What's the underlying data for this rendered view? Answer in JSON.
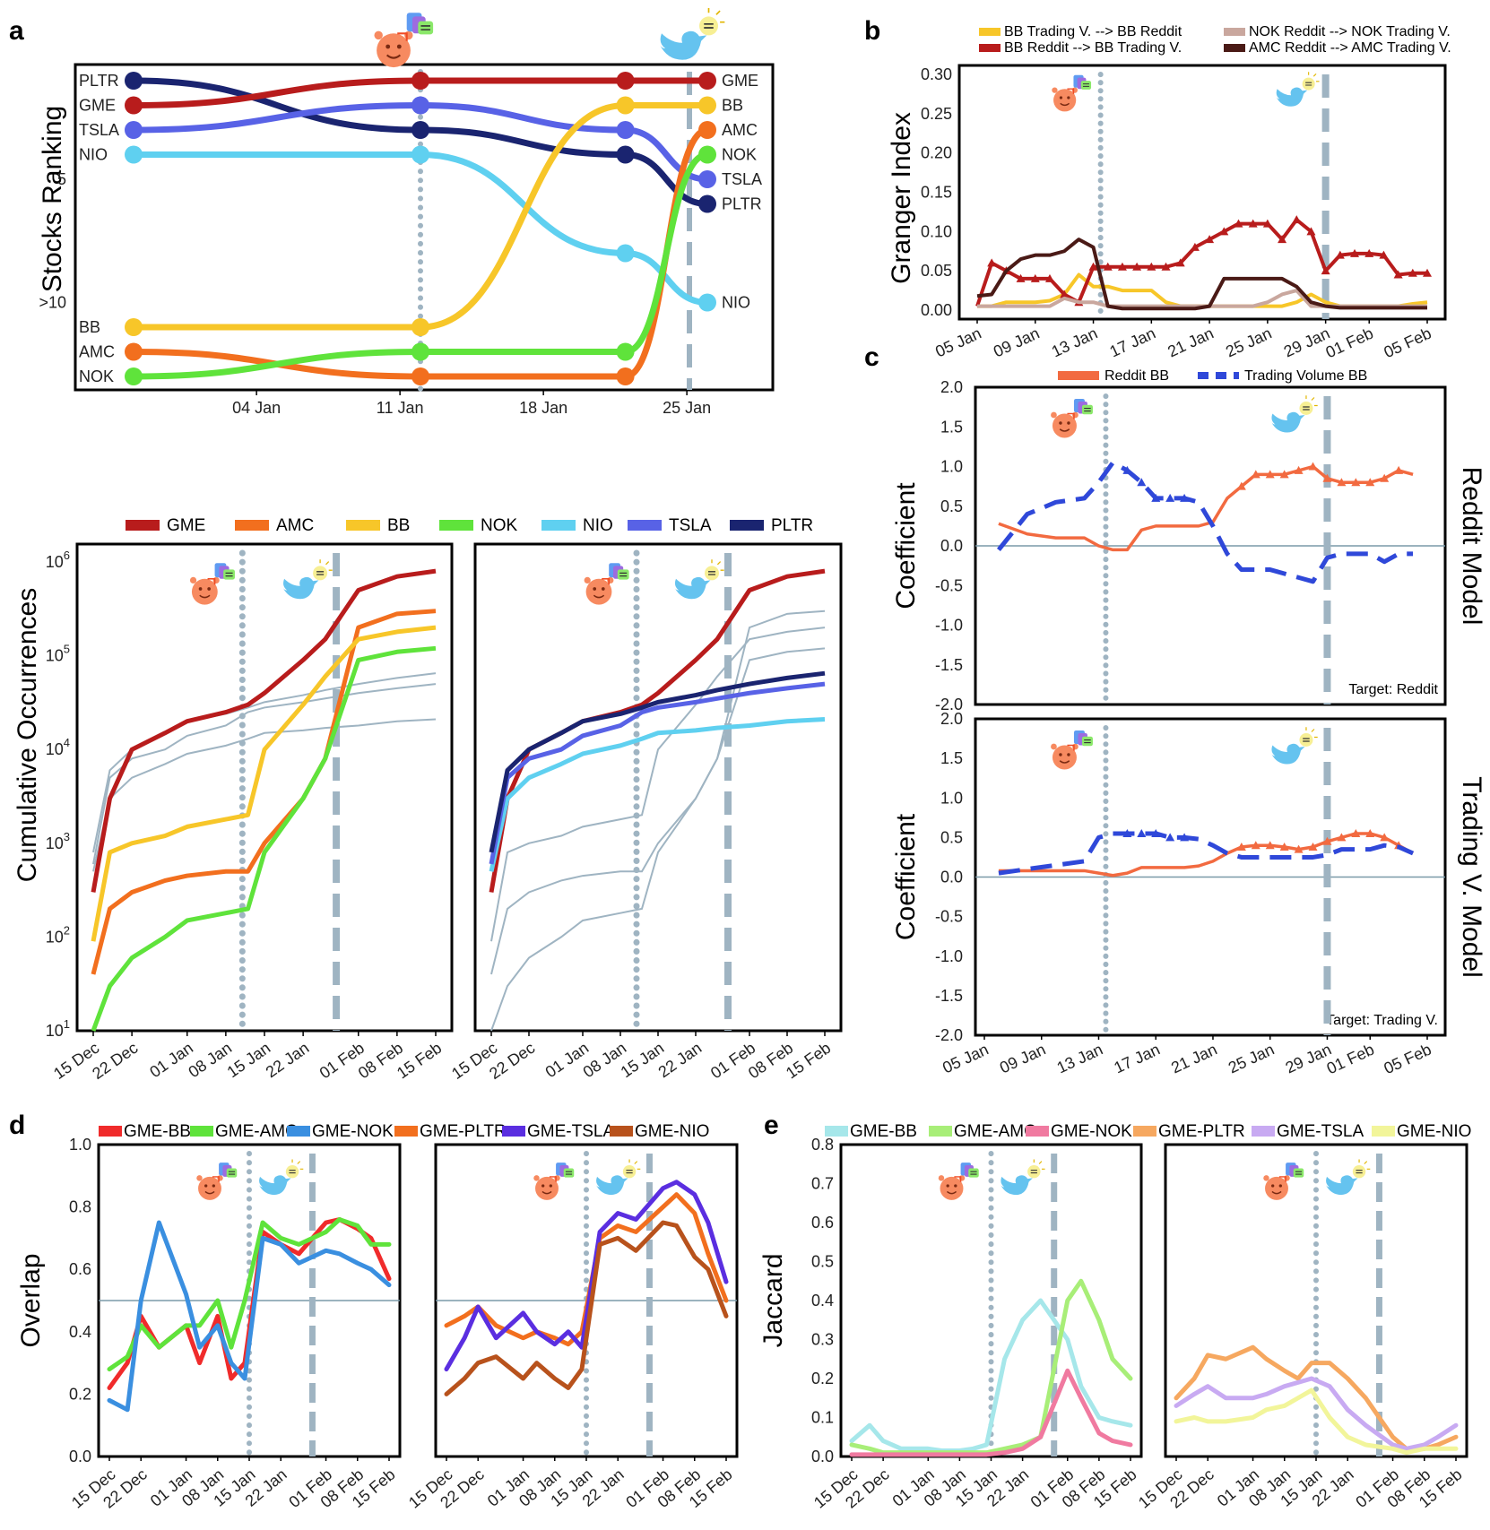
{
  "colors": {
    "GME": "#b81c1c",
    "AMC": "#f26f1e",
    "BB": "#f7c629",
    "NOK": "#5fe33b",
    "NIO": "#5fd0f0",
    "TSLA": "#5862e6",
    "PLTR": "#1a2470",
    "grey": "#9fb4c2",
    "reddit": "#f26a40",
    "trading": "#2f48d9",
    "gNOK": "#c9a79e",
    "gAMC": "#4a1a16"
  },
  "icons": {
    "reddit": "reddit-icon",
    "twitter": "twitter-icon"
  },
  "panelA": {
    "label": "a",
    "ylabel": "Stocks Ranking",
    "xticks": [
      "04 Jan",
      "11 Jan",
      "18 Jan",
      "25 Jan"
    ],
    "yticks": [
      "5",
      "&gt;10"
    ],
    "chart_data": {
      "type": "line",
      "title": "",
      "xlabel": "",
      "ylabel": "Stocks Ranking",
      "x": [
        "29 Dec",
        "12 Jan",
        "22 Jan",
        "26 Jan"
      ],
      "series": [
        {
          "name": "PLTR",
          "ranks": [
            1,
            3,
            4,
            6
          ]
        },
        {
          "name": "GME",
          "ranks": [
            2,
            1,
            1,
            1
          ]
        },
        {
          "name": "TSLA",
          "ranks": [
            3,
            2,
            3,
            5
          ]
        },
        {
          "name": "NIO",
          "ranks": [
            4,
            4,
            8,
            10
          ]
        },
        {
          "name": "BB",
          "ranks": [
            11,
            11,
            2,
            2
          ]
        },
        {
          "name": "AMC",
          "ranks": [
            12,
            13,
            13,
            3
          ]
        },
        {
          "name": "NOK",
          "ranks": [
            13,
            12,
            12,
            4
          ]
        }
      ]
    }
  },
  "panelCum": {
    "ylabel": "Cumulative Occurrences",
    "yticks": [
      "10^1",
      "10^2",
      "10^3",
      "10^4",
      "10^5",
      "10^6"
    ],
    "xticks": [
      "15 Dec",
      "22 Dec",
      "01 Jan",
      "08 Jan",
      "15 Jan",
      "22 Jan",
      "01 Feb",
      "08 Feb",
      "15 Feb"
    ],
    "legend": [
      "GME",
      "AMC",
      "BB",
      "NOK",
      "NIO",
      "TSLA",
      "PLTR"
    ],
    "chart_data": {
      "type": "line",
      "title": "",
      "xlabel": "",
      "ylabel": "Cumulative Occurrences",
      "yscale": "log",
      "ylim": [
        10,
        1000000
      ],
      "x": [
        "15 Dec",
        "18 Dec",
        "22 Dec",
        "28 Dec",
        "01 Jan",
        "08 Jan",
        "12 Jan",
        "15 Jan",
        "22 Jan",
        "26 Jan",
        "01 Feb",
        "08 Feb",
        "15 Feb"
      ],
      "series": [
        {
          "name": "GME",
          "values": [
            300,
            3000,
            10000,
            15000,
            20000,
            25000,
            30000,
            40000,
            90000,
            150000,
            500000,
            700000,
            800000
          ]
        },
        {
          "name": "AMC",
          "values": [
            40,
            200,
            300,
            400,
            450,
            500,
            500,
            1000,
            3000,
            8000,
            200000,
            280000,
            300000
          ]
        },
        {
          "name": "BB",
          "values": [
            90,
            800,
            1000,
            1200,
            1500,
            1800,
            2000,
            10000,
            30000,
            60000,
            150000,
            180000,
            200000
          ]
        },
        {
          "name": "NOK",
          "values": [
            10,
            30,
            60,
            100,
            150,
            180,
            200,
            800,
            3000,
            8000,
            90000,
            110000,
            120000
          ]
        },
        {
          "name": "NIO",
          "values": [
            500,
            3000,
            5000,
            7000,
            9000,
            11000,
            13000,
            15000,
            16000,
            17000,
            18000,
            20000,
            21000
          ]
        },
        {
          "name": "TSLA",
          "values": [
            600,
            5000,
            8000,
            10000,
            14000,
            18000,
            25000,
            28000,
            32000,
            35000,
            40000,
            45000,
            50000
          ]
        },
        {
          "name": "PLTR",
          "values": [
            800,
            6000,
            10000,
            15000,
            20000,
            24000,
            28000,
            32000,
            38000,
            43000,
            50000,
            58000,
            65000
          ]
        }
      ]
    }
  },
  "panelB": {
    "label": "b",
    "ylabel": "Granger Index",
    "yticks": [
      "0.00",
      "0.05",
      "0.10",
      "0.15",
      "0.20",
      "0.25",
      "0.30"
    ],
    "xticks": [
      "05 Jan",
      "09 Jan",
      "13 Jan",
      "17 Jan",
      "21 Jan",
      "25 Jan",
      "29 Jan",
      "01 Feb",
      "05 Feb"
    ],
    "legend": [
      "BB Trading V. --&gt; BB Reddit",
      "BB Reddit --&gt; BB Trading V.",
      "NOK Reddit --&gt; NOK Trading V.",
      "AMC Reddit --&gt; AMC Trading V."
    ],
    "chart_data": {
      "type": "line",
      "title": "",
      "xlabel": "",
      "ylabel": "Granger Index",
      "ylim": [
        0,
        0.3
      ],
      "x_days": [
        5,
        6,
        7,
        8,
        9,
        10,
        11,
        12,
        13,
        14,
        15,
        16,
        17,
        18,
        19,
        20,
        21,
        22,
        23,
        24,
        25,
        26,
        27,
        28,
        29,
        30,
        31,
        32,
        33,
        34,
        35,
        36
      ],
      "series": [
        {
          "name": "BB Trading V. --> BB Reddit",
          "values": [
            0.005,
            0.005,
            0.01,
            0.01,
            0.01,
            0.012,
            0.02,
            0.045,
            0.03,
            0.03,
            0.025,
            0.025,
            0.025,
            0.01,
            0.005,
            0.005,
            0.005,
            0.005,
            0.005,
            0.005,
            0.005,
            0.005,
            0.01,
            0.02,
            0.01,
            0.005,
            0.005,
            0.005,
            0.005,
            0.005,
            0.008,
            0.01
          ]
        },
        {
          "name": "BB Reddit --> BB Trading V.",
          "values": [
            0.005,
            0.06,
            0.05,
            0.04,
            0.04,
            0.04,
            0.02,
            0.01,
            0.055,
            0.055,
            0.055,
            0.055,
            0.055,
            0.055,
            0.06,
            0.08,
            0.09,
            0.1,
            0.11,
            0.11,
            0.11,
            0.09,
            0.115,
            0.1,
            0.05,
            0.07,
            0.072,
            0.072,
            0.07,
            0.045,
            0.047,
            0.047
          ]
        },
        {
          "name": "NOK Reddit --> NOK Trading V.",
          "values": [
            0.005,
            0.005,
            0.005,
            0.005,
            0.005,
            0.005,
            0.015,
            0.01,
            0.01,
            0.005,
            0.005,
            0.005,
            0.005,
            0.005,
            0.005,
            0.005,
            0.005,
            0.005,
            0.005,
            0.005,
            0.01,
            0.02,
            0.025,
            0.005,
            0.005,
            0.005,
            0.005,
            0.005,
            0.005,
            0.005,
            0.005,
            0.005
          ]
        },
        {
          "name": "AMC Reddit --> AMC Trading V.",
          "values": [
            0.018,
            0.02,
            0.05,
            0.065,
            0.07,
            0.07,
            0.075,
            0.09,
            0.08,
            0.005,
            0.002,
            0.002,
            0.002,
            0.002,
            0.002,
            0.002,
            0.005,
            0.04,
            0.04,
            0.04,
            0.04,
            0.04,
            0.03,
            0.01,
            0.005,
            0.003,
            0.003,
            0.003,
            0.003,
            0.003,
            0.003,
            0.003
          ]
        }
      ]
    }
  },
  "panelC": {
    "label": "c",
    "ylabel": "Coefficient",
    "yticks": [
      "-2.0",
      "-1.5",
      "-1.0",
      "-0.5",
      "0.0",
      "0.5",
      "1.0",
      "1.5",
      "2.0"
    ],
    "xticks": [
      "05 Jan",
      "09 Jan",
      "13 Jan",
      "17 Jan",
      "21 Jan",
      "25 Jan",
      "29 Jan",
      "01 Feb",
      "05 Feb"
    ],
    "legend": [
      "Reddit BB",
      "Trading Volume BB"
    ],
    "top_title": "Reddit Model",
    "bottom_title": "Trading V. Model",
    "top_target": "Target: Reddit",
    "bottom_target": "Target: Trading V.",
    "chart_data": [
      {
        "type": "line",
        "title": "Reddit Model",
        "ylabel": "Coefficient",
        "ylim": [
          -2,
          2
        ],
        "x_days": [
          6,
          8,
          10,
          12,
          13,
          14,
          15,
          16,
          17,
          18,
          19,
          20,
          21,
          22,
          23,
          24,
          25,
          26,
          27,
          28,
          29,
          30,
          31,
          32,
          33,
          34,
          35
        ],
        "series": [
          {
            "name": "Reddit BB",
            "values": [
              0.28,
              0.15,
              0.1,
              0.1,
              0.0,
              -0.05,
              -0.05,
              0.2,
              0.25,
              0.25,
              0.25,
              0.25,
              0.3,
              0.6,
              0.75,
              0.9,
              0.9,
              0.9,
              0.95,
              1.0,
              0.85,
              0.8,
              0.8,
              0.8,
              0.85,
              0.95,
              0.9
            ]
          },
          {
            "name": "Trading Volume BB",
            "values": [
              -0.05,
              0.4,
              0.55,
              0.6,
              0.8,
              1.05,
              0.95,
              0.8,
              0.6,
              0.6,
              0.6,
              0.55,
              0.25,
              -0.1,
              -0.3,
              -0.3,
              -0.3,
              -0.35,
              -0.4,
              -0.45,
              -0.15,
              -0.1,
              -0.1,
              -0.1,
              -0.2,
              -0.1,
              -0.1
            ]
          }
        ]
      },
      {
        "type": "line",
        "title": "Trading V. Model",
        "ylabel": "Coefficient",
        "ylim": [
          -2,
          2
        ],
        "x_days": [
          6,
          8,
          10,
          12,
          13,
          14,
          15,
          16,
          17,
          18,
          19,
          20,
          21,
          22,
          23,
          24,
          25,
          26,
          27,
          28,
          29,
          30,
          31,
          32,
          33,
          34,
          35
        ],
        "series": [
          {
            "name": "Reddit BB",
            "values": [
              0.08,
              0.08,
              0.08,
              0.08,
              0.05,
              0.02,
              0.05,
              0.12,
              0.12,
              0.12,
              0.12,
              0.14,
              0.2,
              0.3,
              0.38,
              0.4,
              0.4,
              0.38,
              0.35,
              0.38,
              0.45,
              0.5,
              0.55,
              0.55,
              0.5,
              0.4,
              0.3
            ]
          },
          {
            "name": "Trading Volume BB",
            "values": [
              0.05,
              0.1,
              0.15,
              0.2,
              0.5,
              0.55,
              0.55,
              0.55,
              0.55,
              0.5,
              0.5,
              0.48,
              0.4,
              0.3,
              0.25,
              0.25,
              0.25,
              0.25,
              0.25,
              0.25,
              0.28,
              0.35,
              0.35,
              0.35,
              0.4,
              0.38,
              0.3
            ]
          }
        ]
      }
    ]
  },
  "panelD": {
    "label": "d",
    "ylabel": "Overlap",
    "yticks": [
      "0.0",
      "0.2",
      "0.4",
      "0.6",
      "0.8",
      "1.0"
    ],
    "xticks": [
      "15 Dec",
      "22 Dec",
      "01 Jan",
      "08 Jan",
      "15 Jan",
      "22 Jan",
      "01 Feb",
      "08 Feb",
      "15 Feb"
    ],
    "legend": [
      "GME-BB",
      "GME-AMC",
      "GME-NOK",
      "GME-PLTR",
      "GME-TSLA",
      "GME-NIO"
    ],
    "chart_data": {
      "type": "line",
      "title": "",
      "ylabel": "Overlap",
      "ylim": [
        0,
        1
      ],
      "x": [
        "15 Dec",
        "19 Dec",
        "22 Dec",
        "26 Dec",
        "01 Jan",
        "04 Jan",
        "08 Jan",
        "11 Jan",
        "14 Jan",
        "18 Jan",
        "22 Jan",
        "26 Jan",
        "01 Feb",
        "04 Feb",
        "08 Feb",
        "11 Feb",
        "15 Feb"
      ],
      "series": [
        {
          "name": "GME-BB",
          "values": [
            0.22,
            0.3,
            0.45,
            0.35,
            0.42,
            0.3,
            0.45,
            0.25,
            0.3,
            0.72,
            0.68,
            0.65,
            0.75,
            0.76,
            0.73,
            0.7,
            0.57
          ]
        },
        {
          "name": "GME-AMC",
          "values": [
            0.28,
            0.32,
            0.42,
            0.35,
            0.42,
            0.42,
            0.5,
            0.35,
            0.5,
            0.75,
            0.7,
            0.68,
            0.72,
            0.76,
            0.74,
            0.68,
            0.68
          ]
        },
        {
          "name": "GME-NOK",
          "values": [
            0.18,
            0.15,
            0.5,
            0.75,
            0.52,
            0.35,
            0.42,
            0.3,
            0.25,
            0.7,
            0.68,
            0.62,
            0.66,
            0.65,
            0.62,
            0.6,
            0.55
          ]
        },
        {
          "name": "GME-PLTR",
          "values": [
            0.42,
            0.45,
            0.48,
            0.42,
            0.38,
            0.4,
            0.38,
            0.36,
            0.4,
            0.7,
            0.74,
            0.72,
            0.8,
            0.84,
            0.78,
            0.65,
            0.5
          ]
        },
        {
          "name": "GME-TSLA",
          "values": [
            0.28,
            0.38,
            0.48,
            0.38,
            0.46,
            0.4,
            0.36,
            0.4,
            0.35,
            0.72,
            0.78,
            0.76,
            0.86,
            0.88,
            0.84,
            0.75,
            0.56
          ]
        },
        {
          "name": "GME-NIO",
          "values": [
            0.2,
            0.25,
            0.3,
            0.32,
            0.25,
            0.3,
            0.25,
            0.22,
            0.28,
            0.68,
            0.7,
            0.66,
            0.75,
            0.74,
            0.64,
            0.6,
            0.45
          ]
        }
      ]
    }
  },
  "panelE": {
    "label": "e",
    "ylabel": "Jaccard",
    "yticks": [
      "0.0",
      "0.1",
      "0.2",
      "0.3",
      "0.4",
      "0.5",
      "0.6",
      "0.7",
      "0.8"
    ],
    "xticks": [
      "15 Dec",
      "22 Dec",
      "01 Jan",
      "08 Jan",
      "15 Jan",
      "22 Jan",
      "01 Feb",
      "08 Feb",
      "15 Feb"
    ],
    "legend": [
      "GME-BB",
      "GME-AMC",
      "GME-NOK",
      "GME-PLTR",
      "GME-TSLA",
      "GME-NIO"
    ],
    "chart_data": {
      "type": "line",
      "title": "",
      "ylabel": "Jaccard",
      "ylim": [
        0,
        0.8
      ],
      "x": [
        "15 Dec",
        "19 Dec",
        "22 Dec",
        "26 Dec",
        "01 Jan",
        "04 Jan",
        "08 Jan",
        "11 Jan",
        "14 Jan",
        "18 Jan",
        "22 Jan",
        "26 Jan",
        "01 Feb",
        "04 Feb",
        "08 Feb",
        "11 Feb",
        "15 Feb"
      ],
      "series": [
        {
          "name": "GME-BB",
          "values": [
            0.04,
            0.08,
            0.04,
            0.02,
            0.02,
            0.015,
            0.015,
            0.02,
            0.03,
            0.25,
            0.35,
            0.4,
            0.3,
            0.18,
            0.1,
            0.09,
            0.08
          ]
        },
        {
          "name": "GME-AMC",
          "values": [
            0.03,
            0.02,
            0.01,
            0.01,
            0.01,
            0.01,
            0.01,
            0.01,
            0.01,
            0.02,
            0.03,
            0.05,
            0.4,
            0.45,
            0.35,
            0.25,
            0.2
          ]
        },
        {
          "name": "GME-NOK",
          "values": [
            0.005,
            0.005,
            0.005,
            0.005,
            0.005,
            0.005,
            0.005,
            0.005,
            0.005,
            0.01,
            0.02,
            0.05,
            0.22,
            0.15,
            0.06,
            0.04,
            0.03
          ]
        },
        {
          "name": "GME-PLTR",
          "values": [
            0.15,
            0.2,
            0.26,
            0.25,
            0.28,
            0.25,
            0.22,
            0.2,
            0.24,
            0.24,
            0.2,
            0.15,
            0.05,
            0.02,
            0.02,
            0.03,
            0.05
          ]
        },
        {
          "name": "GME-TSLA",
          "values": [
            0.13,
            0.16,
            0.18,
            0.15,
            0.15,
            0.16,
            0.18,
            0.19,
            0.2,
            0.18,
            0.12,
            0.08,
            0.03,
            0.02,
            0.03,
            0.05,
            0.08
          ]
        },
        {
          "name": "GME-NIO",
          "values": [
            0.09,
            0.1,
            0.09,
            0.09,
            0.1,
            0.12,
            0.13,
            0.15,
            0.17,
            0.1,
            0.05,
            0.03,
            0.02,
            0.01,
            0.02,
            0.02,
            0.02
          ]
        }
      ]
    }
  }
}
